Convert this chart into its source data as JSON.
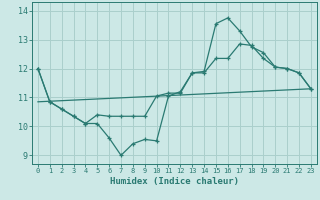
{
  "xlabel": "Humidex (Indice chaleur)",
  "background_color": "#cce8e6",
  "grid_color": "#aacfcc",
  "line_color": "#2a7a72",
  "xlim": [
    -0.5,
    23.5
  ],
  "ylim": [
    8.7,
    14.3
  ],
  "xticks": [
    0,
    1,
    2,
    3,
    4,
    5,
    6,
    7,
    8,
    9,
    10,
    11,
    12,
    13,
    14,
    15,
    16,
    17,
    18,
    19,
    20,
    21,
    22,
    23
  ],
  "yticks": [
    9,
    10,
    11,
    12,
    13,
    14
  ],
  "line1_x": [
    0,
    1,
    2,
    3,
    4,
    5,
    6,
    7,
    8,
    9,
    10,
    11,
    12,
    13,
    14,
    15,
    16,
    17,
    18,
    19,
    20,
    21,
    22,
    23
  ],
  "line1_y": [
    12.0,
    10.85,
    10.6,
    10.35,
    10.1,
    10.1,
    9.6,
    9.0,
    9.4,
    9.55,
    9.5,
    11.05,
    11.2,
    11.85,
    11.9,
    13.55,
    13.75,
    13.3,
    12.75,
    12.55,
    12.05,
    12.0,
    11.85,
    11.3
  ],
  "line2_x": [
    0,
    1,
    2,
    3,
    4,
    5,
    6,
    7,
    8,
    9,
    10,
    11,
    12,
    13,
    14,
    15,
    16,
    17,
    18,
    19,
    20,
    21,
    22,
    23
  ],
  "line2_y": [
    12.0,
    10.85,
    10.6,
    10.35,
    10.1,
    10.4,
    10.35,
    10.35,
    10.35,
    10.35,
    11.05,
    11.15,
    11.15,
    11.85,
    11.85,
    12.35,
    12.35,
    12.85,
    12.8,
    12.35,
    12.05,
    12.0,
    11.85,
    11.3
  ],
  "line3_x": [
    0,
    23
  ],
  "line3_y": [
    10.85,
    11.3
  ]
}
